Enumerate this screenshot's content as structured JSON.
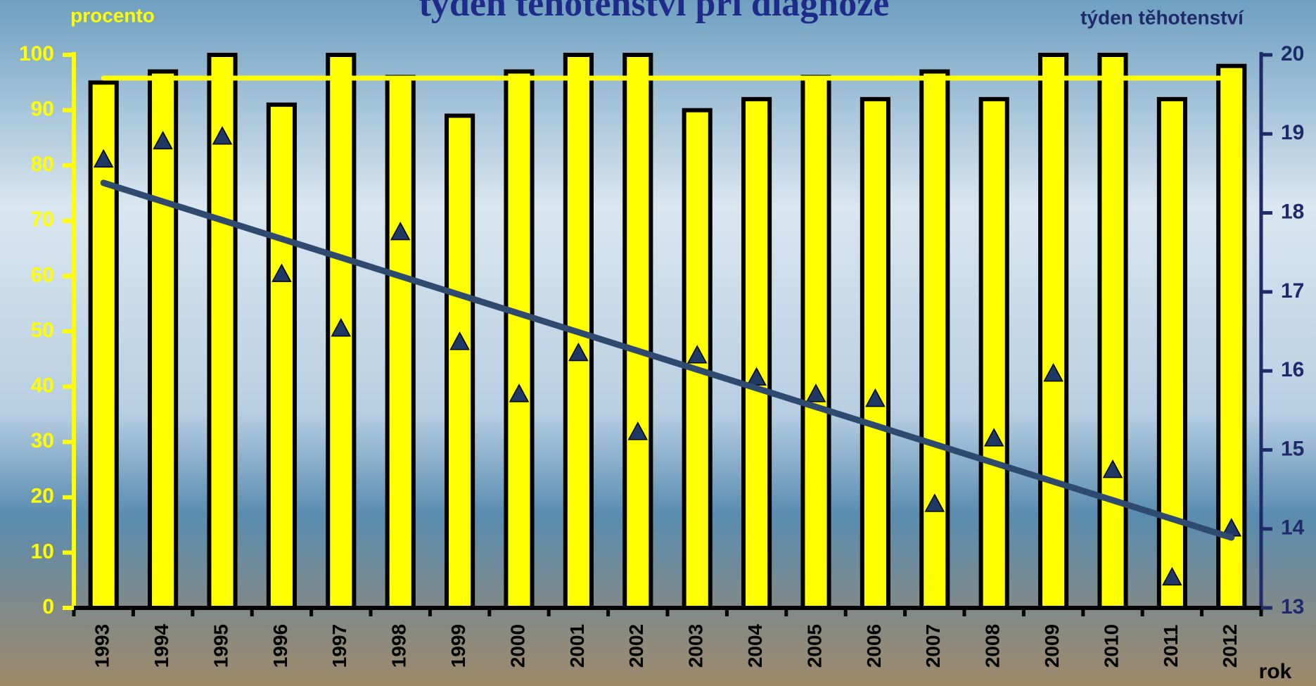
{
  "chart_data": {
    "type": "bar",
    "title": "týden těhotenství při diagnóze",
    "y_label": "procento",
    "y2_label": "týden těhotenství",
    "x_label": "rok",
    "categories": [
      "1993",
      "1994",
      "1995",
      "1996",
      "1997",
      "1998",
      "1999",
      "2000",
      "2001",
      "2002",
      "2003",
      "2004",
      "2005",
      "2006",
      "2007",
      "2008",
      "2009",
      "2010",
      "2011",
      "2012"
    ],
    "series": [
      {
        "type": "bar",
        "color": "#ffff00",
        "values": [
          95,
          97,
          100,
          91,
          100,
          96,
          89,
          97,
          100,
          100,
          90,
          92,
          96,
          92,
          97,
          92,
          100,
          100,
          92,
          98
        ]
      },
      {
        "type": "scatter",
        "axis": "y2",
        "color": "#1f3864",
        "values": [
          18.67,
          18.9,
          18.96,
          17.22,
          16.53,
          17.75,
          16.36,
          15.7,
          16.22,
          15.22,
          16.19,
          15.91,
          15.7,
          15.64,
          14.31,
          15.14,
          15.96,
          14.74,
          13.38,
          14.0
        ]
      }
    ],
    "trend_lines": [
      {
        "color": "#ffff00",
        "values": [
          95.8,
          95.8
        ]
      },
      {
        "axis": "y2",
        "color": "#2e4a6e",
        "values": [
          18.38,
          13.89
        ]
      }
    ],
    "ylim": [
      0,
      100
    ],
    "yticks": [
      0,
      10,
      20,
      30,
      40,
      50,
      60,
      70,
      80,
      90,
      100
    ],
    "y2lim": [
      13,
      20
    ],
    "y2ticks": [
      13,
      14,
      15,
      16,
      17,
      18,
      19,
      20
    ]
  }
}
